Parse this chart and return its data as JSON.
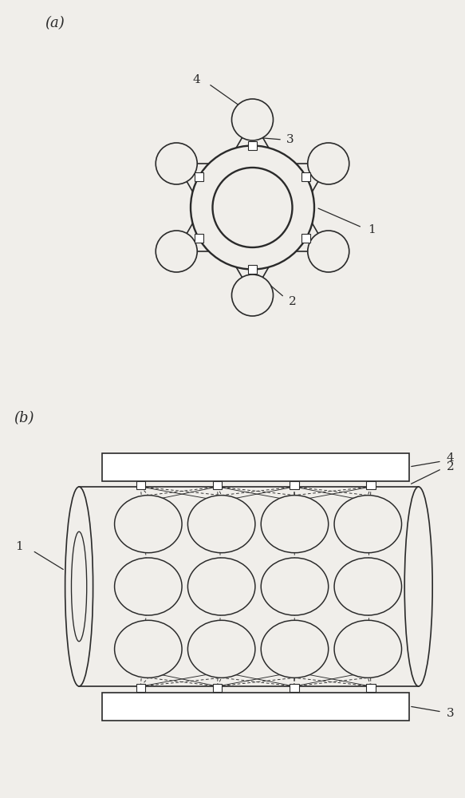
{
  "bg_color": "#f0eeea",
  "line_color": "#2a2a2a",
  "fig_width": 5.83,
  "fig_height": 10.0,
  "panel_a_label": "(a)",
  "panel_b_label": "(b)"
}
